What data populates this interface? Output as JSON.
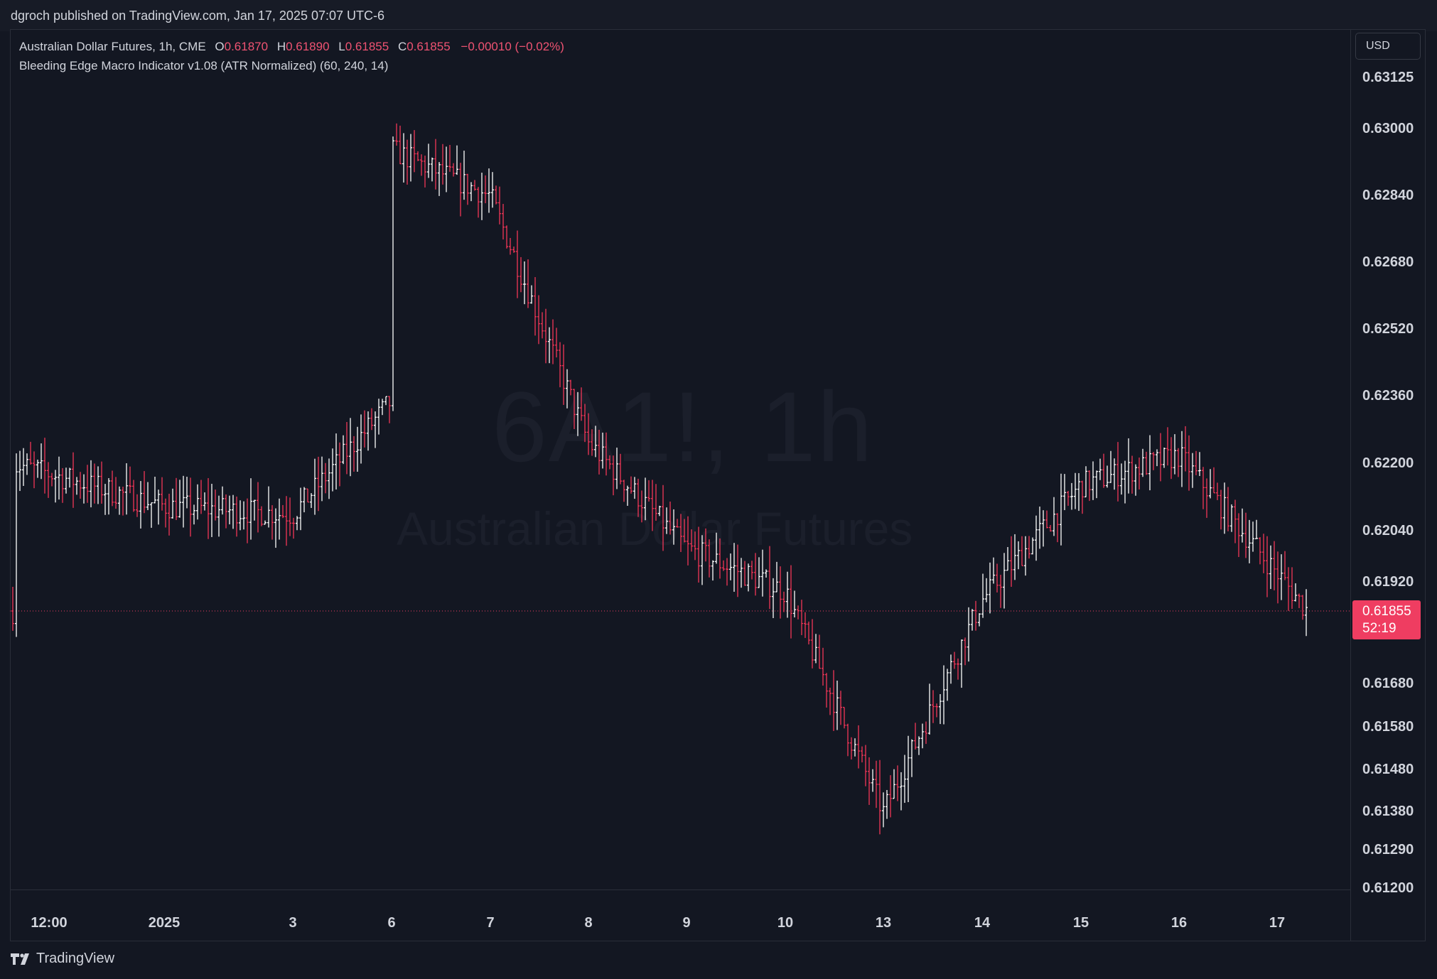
{
  "header": {
    "published_text": "dgroch published on TradingView.com, Jan 17, 2025 07:07 UTC-6"
  },
  "legend": {
    "instrument": "Australian Dollar Futures, 1h, CME",
    "open_key": "O",
    "open": "0.61870",
    "high_key": "H",
    "high": "0.61890",
    "low_key": "L",
    "low": "0.61855",
    "close_key": "C",
    "close": "0.61855",
    "change": "−0.00010 (−0.02%)",
    "indicator": "Bleeding Edge Macro Indicator v1.08 (ATR Normalized) (60, 240, 14)"
  },
  "watermark": {
    "symbol": "6A1!, 1h",
    "description": "Australian Dollar Futures"
  },
  "currency_button": "USD",
  "current_price_tag": {
    "price": "0.61855",
    "countdown": "52:19"
  },
  "footer": {
    "brand": "TradingView"
  },
  "colors": {
    "background": "#131722",
    "bullish_bar": "#ffffff",
    "bearish_bar": "#f23658",
    "price_tag": "#ef3d61",
    "text": "#d1d4dc"
  },
  "chart_data": {
    "type": "ohlc-bars",
    "title": "Australian Dollar Futures, 1h, CME",
    "y_axis": {
      "labels": [
        "0.63125",
        "0.63000",
        "0.62840",
        "0.62680",
        "0.62520",
        "0.62360",
        "0.62200",
        "0.62040",
        "0.61920",
        "0.61680",
        "0.61580",
        "0.61480",
        "0.61380",
        "0.61290",
        "0.61200"
      ],
      "range": [
        0.6115,
        0.6318
      ]
    },
    "x_axis": {
      "labels": [
        "12:00",
        "2025",
        "3",
        "6",
        "7",
        "8",
        "9",
        "10",
        "13",
        "14",
        "15",
        "16",
        "17"
      ]
    },
    "current_price": 0.61855,
    "approx_price_path": [
      {
        "x": "12:00",
        "price": 0.622
      },
      {
        "x": "2025",
        "price": 0.621
      },
      {
        "x": "3",
        "price": 0.6208
      },
      {
        "x": "6",
        "price": 0.6235
      },
      {
        "x": "6",
        "price": 0.6295
      },
      {
        "x": "7",
        "price": 0.6284
      },
      {
        "x": "8",
        "price": 0.6225
      },
      {
        "x": "9",
        "price": 0.62
      },
      {
        "x": "10",
        "price": 0.619
      },
      {
        "x": "13",
        "price": 0.6138
      },
      {
        "x": "14",
        "price": 0.6188
      },
      {
        "x": "15",
        "price": 0.6215
      },
      {
        "x": "16",
        "price": 0.6222
      },
      {
        "x": "17",
        "price": 0.61855
      }
    ]
  }
}
